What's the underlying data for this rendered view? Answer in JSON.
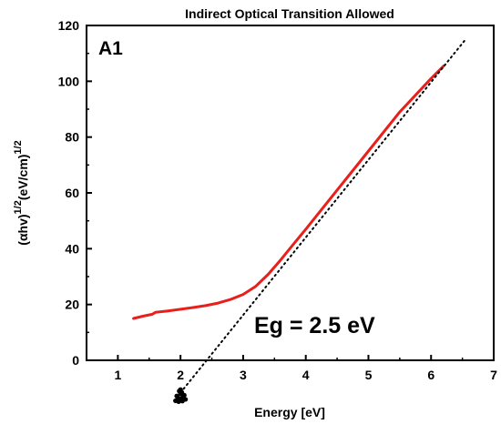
{
  "chart_data": {
    "type": "line",
    "title": "Indirect Optical Transition Allowed",
    "xlabel": "Energy [eV]",
    "ylabel": {
      "base": "(αhv)",
      "sup1": "1/2",
      "mid": "(eV/cm)",
      "sup2": "1/2"
    },
    "panel_label": "A1",
    "annotation": "Eg = 2.5 eV",
    "xlim": [
      0.5,
      7
    ],
    "ylim": [
      0,
      120
    ],
    "xticks": [
      1,
      2,
      3,
      4,
      5,
      6,
      7
    ],
    "yticks": [
      0,
      20,
      40,
      60,
      80,
      100,
      120
    ],
    "grid": false,
    "series": [
      {
        "color": "#e8201c",
        "style": "solid",
        "x": [
          1.25,
          1.4,
          1.55,
          1.6,
          1.8,
          2.0,
          2.2,
          2.4,
          2.6,
          2.8,
          3.0,
          3.2,
          3.4,
          3.6,
          3.8,
          4.0,
          4.5,
          5.0,
          5.5,
          6.0,
          6.2
        ],
        "y": [
          15.0,
          15.8,
          16.5,
          17.2,
          17.7,
          18.3,
          18.9,
          19.6,
          20.5,
          21.8,
          23.6,
          26.5,
          30.8,
          36.0,
          41.5,
          47.0,
          61.0,
          75.0,
          89.0,
          101.0,
          105.5
        ]
      },
      {
        "color": "#000000",
        "style": "dotted",
        "x": [
          1.95,
          6.55
        ],
        "y": [
          -13,
          115
        ]
      }
    ],
    "scatter_cluster": {
      "color": "#000000",
      "x": [
        1.92,
        1.96,
        2.0,
        2.04,
        2.08,
        1.98,
        2.02,
        1.94,
        2.06,
        2.0,
        1.97,
        2.03,
        1.99
      ],
      "y": [
        -14.5,
        -13.5,
        -12.0,
        -13.0,
        -14.0,
        -11.0,
        -11.5,
        -12.8,
        -12.5,
        -10.5,
        -14.8,
        -14.6,
        -13.8
      ]
    }
  }
}
